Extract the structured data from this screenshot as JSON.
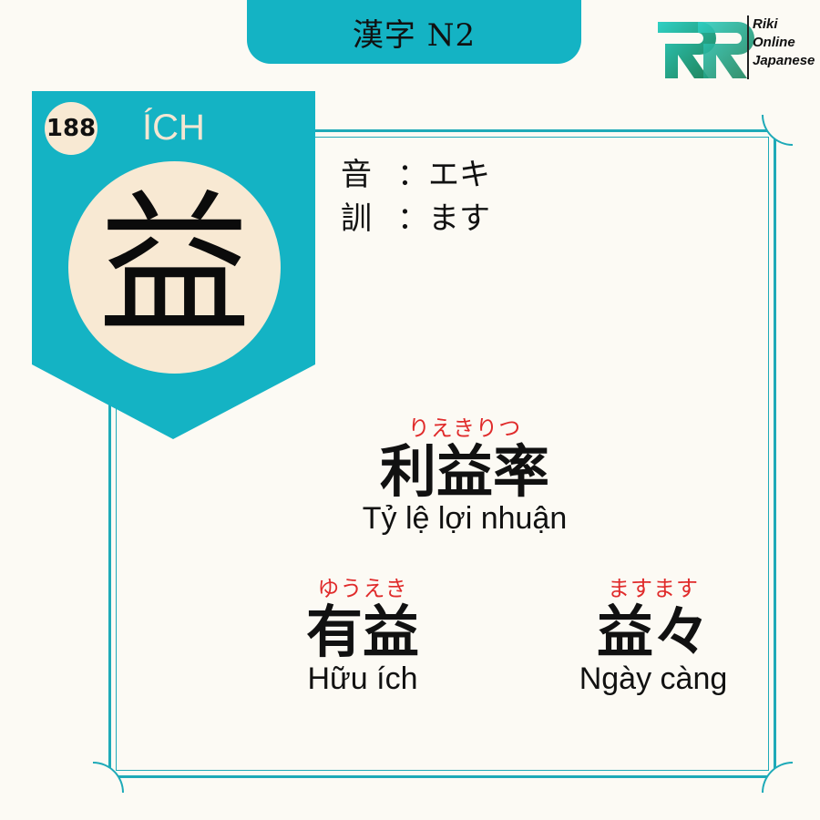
{
  "header": {
    "title": "漢字 N2"
  },
  "logo": {
    "line1": "Riki",
    "line2": "Online",
    "line3": "Japanese",
    "colors": [
      "#26c7c0",
      "#1f8a5e"
    ]
  },
  "card": {
    "number": "188",
    "han_viet": "ÍCH",
    "kanji": "益",
    "accent_color": "#14b3c4",
    "circle_color": "#f8e9d3"
  },
  "readings": {
    "on": {
      "label": "音",
      "value": "：エキ"
    },
    "kun": {
      "label": "訓",
      "value": "：ます"
    }
  },
  "vocab": [
    {
      "furigana": "りえきりつ",
      "word": "利益率",
      "meaning": "Tỷ lệ lợi nhuận"
    },
    {
      "furigana": "ゆうえき",
      "word": "有益",
      "meaning": "Hữu ích"
    },
    {
      "furigana": "ますます",
      "word": "益々",
      "meaning": "Ngày càng"
    }
  ]
}
